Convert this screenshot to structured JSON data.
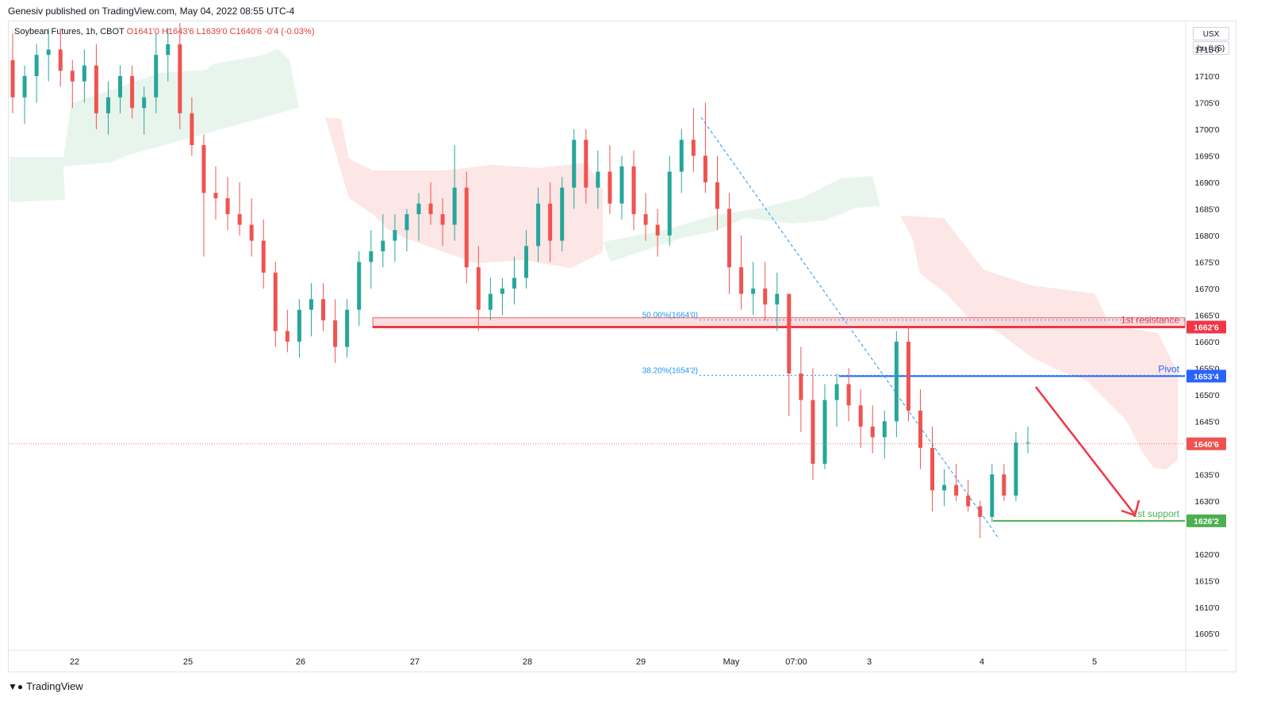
{
  "publisher_line": "Genesiv published on TradingView.com, May 04, 2022 08:55 UTC-4",
  "symbol": {
    "name": "Soybean Futures, 1h, CBOT",
    "open": "O1641'0",
    "high": "H1643'6",
    "low": "L1639'0",
    "close": "C1640'6",
    "change": "-0'4 (-0.03%)"
  },
  "currency": "USX",
  "unit": "bu (US)",
  "footer_brand": "TradingView",
  "colors": {
    "up": "#26a69a",
    "down": "#ef5350",
    "resistance": "#f23645",
    "pivot": "#2962ff",
    "support": "#4caf50",
    "fib": "#2196f3",
    "cloud_red": "#fde3e3",
    "cloud_green": "#e6f4ea"
  },
  "chart_data": {
    "type": "candlestick",
    "ylim": [
      1602,
      1720
    ],
    "y_ticks": [
      "1715'0",
      "1710'0",
      "1705'0",
      "1700'0",
      "1695'0",
      "1690'0",
      "1685'0",
      "1680'0",
      "1675'0",
      "1670'0",
      "1665'0",
      "1660'0",
      "1655'0",
      "1650'0",
      "1645'0",
      "1635'0",
      "1630'0",
      "1620'0",
      "1615'0",
      "1610'0",
      "1605'0"
    ],
    "x_labels": [
      "22",
      "25",
      "26",
      "27",
      "28",
      "29",
      "May",
      "07:00",
      "3",
      "4",
      "5"
    ],
    "levels": [
      {
        "label": "1st resistance",
        "tag": "1662'6",
        "value": 1662.75,
        "color": "resistance"
      },
      {
        "label": "Pivot",
        "tag": "1653'4",
        "value": 1653.5,
        "color": "pivot"
      },
      {
        "label": "1st support",
        "tag": "1626'2",
        "value": 1626.25,
        "color": "support"
      }
    ],
    "last_price": {
      "tag": "1640'6",
      "value": 1640.75
    },
    "fib_levels": [
      {
        "label": "50.00%(1664'0)",
        "value": 1664.0
      },
      {
        "label": "38.20%(1654'2)",
        "value": 1654.25
      }
    ],
    "candles": [
      [
        1713,
        1718,
        1703,
        1706
      ],
      [
        1706,
        1712,
        1701,
        1710
      ],
      [
        1710,
        1716,
        1705,
        1714
      ],
      [
        1714,
        1719,
        1709,
        1715
      ],
      [
        1715,
        1719,
        1708,
        1711
      ],
      [
        1711,
        1713,
        1704,
        1709
      ],
      [
        1709,
        1715,
        1705,
        1712
      ],
      [
        1712,
        1716,
        1700,
        1703
      ],
      [
        1703,
        1709,
        1699,
        1706
      ],
      [
        1706,
        1712,
        1703,
        1710
      ],
      [
        1710,
        1712,
        1702,
        1704
      ],
      [
        1704,
        1708,
        1699,
        1706
      ],
      [
        1706,
        1718,
        1703,
        1714
      ],
      [
        1714,
        1719,
        1709,
        1716
      ],
      [
        1716,
        1720,
        1700,
        1703
      ],
      [
        1703,
        1706,
        1695,
        1697
      ],
      [
        1697,
        1699,
        1676,
        1688
      ],
      [
        1688,
        1693,
        1683,
        1687
      ],
      [
        1687,
        1691,
        1681,
        1684
      ],
      [
        1684,
        1690,
        1680,
        1682
      ],
      [
        1682,
        1687,
        1676,
        1679
      ],
      [
        1679,
        1683,
        1670,
        1673
      ],
      [
        1673,
        1675,
        1659,
        1662
      ],
      [
        1662,
        1666,
        1658,
        1660
      ],
      [
        1660,
        1668,
        1657,
        1666
      ],
      [
        1666,
        1671,
        1661,
        1668
      ],
      [
        1668,
        1671,
        1662,
        1664
      ],
      [
        1664,
        1668,
        1656,
        1659
      ],
      [
        1659,
        1668,
        1657,
        1666
      ],
      [
        1666,
        1677,
        1663,
        1675
      ],
      [
        1675,
        1681,
        1670,
        1677
      ],
      [
        1677,
        1684,
        1674,
        1679
      ],
      [
        1679,
        1684,
        1675,
        1681
      ],
      [
        1681,
        1685,
        1677,
        1684
      ],
      [
        1684,
        1688,
        1679,
        1686
      ],
      [
        1686,
        1690,
        1682,
        1684
      ],
      [
        1684,
        1687,
        1678,
        1682
      ],
      [
        1682,
        1697,
        1679,
        1689
      ],
      [
        1689,
        1692,
        1671,
        1674
      ],
      [
        1674,
        1678,
        1662,
        1666
      ],
      [
        1666,
        1672,
        1664,
        1669
      ],
      [
        1669,
        1672,
        1665,
        1670
      ],
      [
        1670,
        1676,
        1667,
        1672
      ],
      [
        1672,
        1681,
        1670,
        1678
      ],
      [
        1678,
        1689,
        1675,
        1686
      ],
      [
        1686,
        1690,
        1675,
        1679
      ],
      [
        1679,
        1691,
        1677,
        1689
      ],
      [
        1689,
        1700,
        1685,
        1698
      ],
      [
        1698,
        1700,
        1686,
        1689
      ],
      [
        1689,
        1696,
        1685,
        1692
      ],
      [
        1692,
        1697,
        1684,
        1686
      ],
      [
        1686,
        1695,
        1683,
        1693
      ],
      [
        1693,
        1696,
        1681,
        1684
      ],
      [
        1684,
        1688,
        1679,
        1682
      ],
      [
        1682,
        1685,
        1676,
        1680
      ],
      [
        1680,
        1695,
        1678,
        1692
      ],
      [
        1692,
        1700,
        1688,
        1698
      ],
      [
        1698,
        1704,
        1692,
        1695
      ],
      [
        1695,
        1705,
        1688,
        1690
      ],
      [
        1690,
        1695,
        1681,
        1685
      ],
      [
        1685,
        1688,
        1669,
        1674
      ],
      [
        1674,
        1680,
        1666,
        1669
      ],
      [
        1669,
        1675,
        1665,
        1670
      ],
      [
        1670,
        1675,
        1664,
        1667
      ],
      [
        1667,
        1673,
        1662,
        1669
      ],
      [
        1669,
        1669,
        1646,
        1654
      ],
      [
        1654,
        1659,
        1643,
        1649
      ],
      [
        1649,
        1655,
        1634,
        1637
      ],
      [
        1637,
        1652,
        1636,
        1649
      ],
      [
        1649,
        1654,
        1644,
        1652
      ],
      [
        1652,
        1655,
        1645,
        1648
      ],
      [
        1648,
        1651,
        1640,
        1644
      ],
      [
        1644,
        1648,
        1639,
        1642
      ],
      [
        1642,
        1647,
        1638,
        1645
      ],
      [
        1645,
        1662,
        1642,
        1660
      ],
      [
        1660,
        1663,
        1645,
        1647
      ],
      [
        1647,
        1651,
        1636,
        1640
      ],
      [
        1640,
        1644,
        1628,
        1632
      ],
      [
        1632,
        1636,
        1629,
        1633
      ],
      [
        1633,
        1637,
        1630,
        1631
      ],
      [
        1631,
        1634,
        1628,
        1629
      ],
      [
        1629,
        1630,
        1623,
        1627
      ],
      [
        1627,
        1637,
        1626,
        1635
      ],
      [
        1635,
        1637,
        1630,
        1631
      ],
      [
        1631,
        1643,
        1630,
        1641
      ],
      [
        1641,
        1644,
        1639,
        1641
      ]
    ]
  }
}
